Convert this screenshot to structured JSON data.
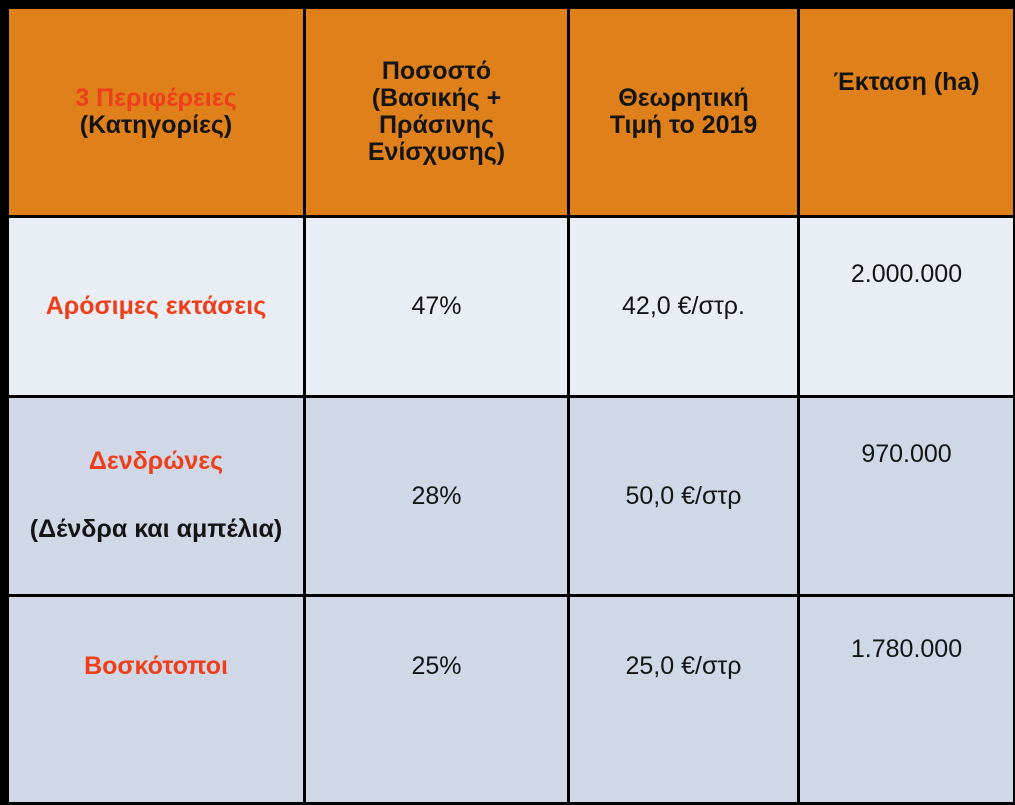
{
  "table": {
    "header": {
      "category_title": "3 Περιφέρειες",
      "category_subtitle": "(Κατηγορίες)",
      "columns": [
        "Ποσοστό (Βασικής + Πράσινης Ενίσχυσης)",
        "Θεωρητική Τιμή το 2019",
        "Έκταση (ha)"
      ]
    },
    "rows": [
      {
        "category": "Αρόσιμες εκτάσεις",
        "share": "47%",
        "price": "42,0 €/στρ.",
        "area": "2.000.000"
      },
      {
        "category": "Δενδρώνες",
        "detail": "(Δένδρα και αμπέλια)",
        "share": "28%",
        "price": "50,0 €/στρ",
        "area": "970.000"
      },
      {
        "category": "Βοσκότοποι",
        "share": "25%",
        "price": "25,0 €/στρ",
        "area": "1.780.000"
      }
    ]
  }
}
